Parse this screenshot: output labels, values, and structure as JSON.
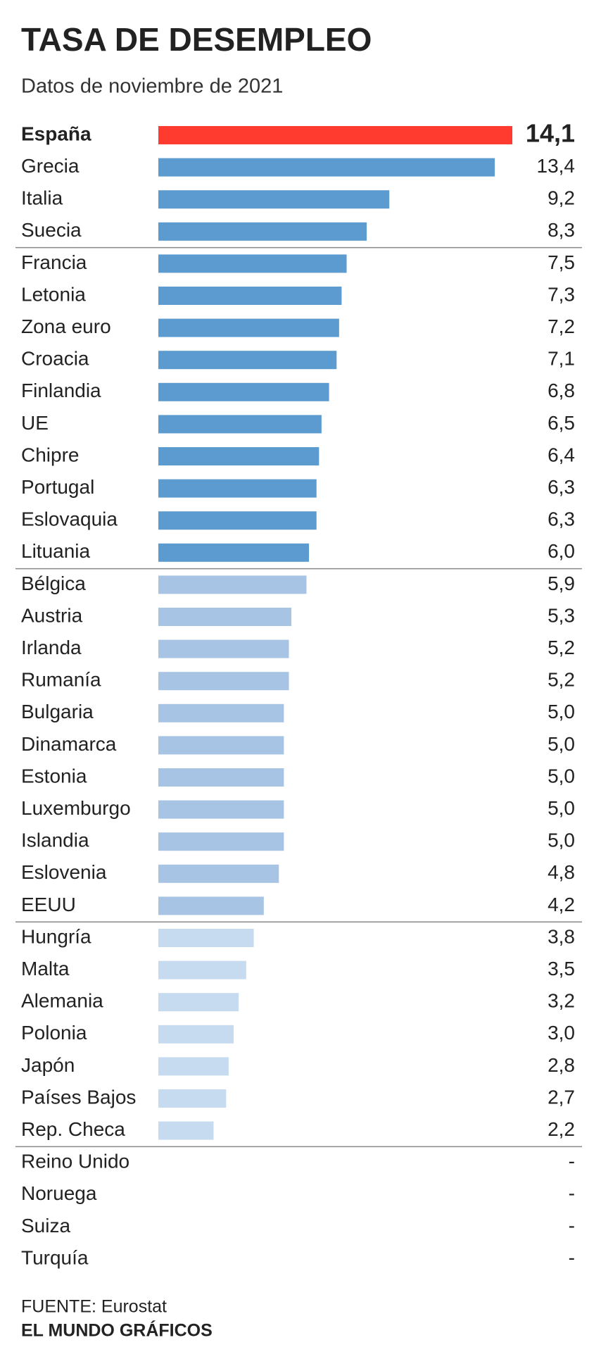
{
  "chart_data": {
    "type": "bar",
    "orientation": "horizontal",
    "title": "TASA DE DESEMPLEO",
    "subtitle": "Datos de noviembre de 2021",
    "xlim": [
      0,
      14.1
    ],
    "groups": [
      {
        "categories": [
          "España",
          "Grecia",
          "Italia",
          "Suecia"
        ],
        "values": [
          14.1,
          13.4,
          9.2,
          8.3
        ],
        "value_labels": [
          "14,1",
          "13,4",
          "9,2",
          "8,3"
        ],
        "colors": [
          "#ff3b30",
          "#5b9bd0",
          "#5b9bd0",
          "#5b9bd0"
        ],
        "highlight": 0
      },
      {
        "categories": [
          "Francia",
          "Letonia",
          "Zona euro",
          "Croacia",
          "Finlandia",
          "UE",
          "Chipre",
          "Portugal",
          "Eslovaquia",
          "Lituania"
        ],
        "values": [
          7.5,
          7.3,
          7.2,
          7.1,
          6.8,
          6.5,
          6.4,
          6.3,
          6.3,
          6.0
        ],
        "value_labels": [
          "7,5",
          "7,3",
          "7,2",
          "7,1",
          "6,8",
          "6,5",
          "6,4",
          "6,3",
          "6,3",
          "6,0"
        ],
        "colors": [
          "#5b9bd0",
          "#5b9bd0",
          "#5b9bd0",
          "#5b9bd0",
          "#5b9bd0",
          "#5b9bd0",
          "#5b9bd0",
          "#5b9bd0",
          "#5b9bd0",
          "#5b9bd0"
        ]
      },
      {
        "categories": [
          "Bélgica",
          "Austria",
          "Irlanda",
          "Rumanía",
          "Bulgaria",
          "Dinamarca",
          "Estonia",
          "Luxemburgo",
          "Islandia",
          "Eslovenia",
          "EEUU"
        ],
        "values": [
          5.9,
          5.3,
          5.2,
          5.2,
          5.0,
          5.0,
          5.0,
          5.0,
          5.0,
          4.8,
          4.2
        ],
        "value_labels": [
          "5,9",
          "5,3",
          "5,2",
          "5,2",
          "5,0",
          "5,0",
          "5,0",
          "5,0",
          "5,0",
          "4,8",
          "4,2"
        ],
        "colors": [
          "#a7c4e4",
          "#a7c4e4",
          "#a7c4e4",
          "#a7c4e4",
          "#a7c4e4",
          "#a7c4e4",
          "#a7c4e4",
          "#a7c4e4",
          "#a7c4e4",
          "#a7c4e4",
          "#a7c4e4"
        ]
      },
      {
        "categories": [
          "Hungría",
          "Malta",
          "Alemania",
          "Polonia",
          "Japón",
          "Países Bajos",
          "Rep. Checa"
        ],
        "values": [
          3.8,
          3.5,
          3.2,
          3.0,
          2.8,
          2.7,
          2.2
        ],
        "value_labels": [
          "3,8",
          "3,5",
          "3,2",
          "3,0",
          "2,8",
          "2,7",
          "2,2"
        ],
        "colors": [
          "#c6dbef",
          "#c6dbef",
          "#c6dbef",
          "#c6dbef",
          "#c6dbef",
          "#c6dbef",
          "#c6dbef"
        ]
      },
      {
        "categories": [
          "Reino Unido",
          "Noruega",
          "Suiza",
          "Turquía"
        ],
        "values": [
          null,
          null,
          null,
          null
        ],
        "value_labels": [
          "-",
          "-",
          "-",
          "-"
        ]
      }
    ],
    "source": "FUENTE: Eurostat",
    "credit": "EL MUNDO GRÁFICOS"
  }
}
